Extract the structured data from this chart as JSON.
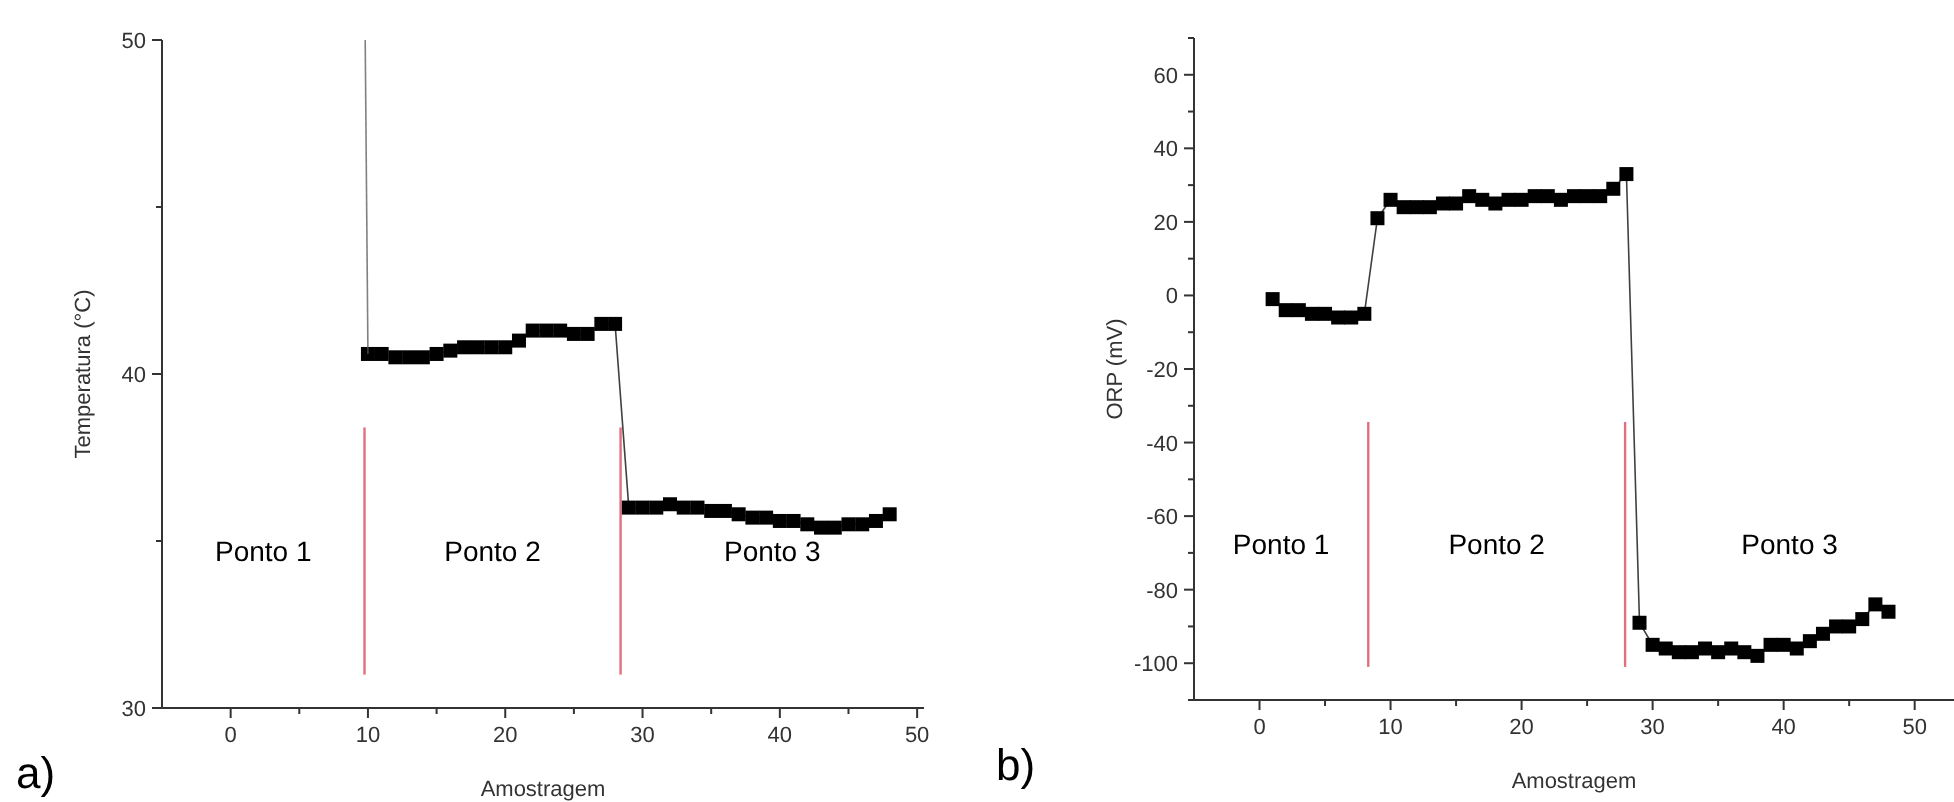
{
  "chart_data": [
    {
      "type": "line",
      "xlabel": "Amostragem",
      "ylabel": "Temperatura (°C)",
      "xlim": [
        -5,
        50.5
      ],
      "ylim": [
        30,
        50
      ],
      "xticks": [
        0,
        {
          "value": 5,
          "label": null
        },
        10,
        {
          "value": 15,
          "label": null
        },
        20,
        {
          "value": 25,
          "label": null
        },
        30,
        {
          "value": 35,
          "label": null
        },
        40,
        {
          "value": 45,
          "label": null
        },
        50
      ],
      "yticks": [
        30,
        {
          "value": 35,
          "label": null
        },
        40,
        {
          "value": 45,
          "label": null
        },
        50
      ],
      "grid": false,
      "marker": "square",
      "line_style": "solid",
      "series": [
        {
          "color": "#000000",
          "x": [
            10,
            11,
            12,
            13,
            14,
            15,
            16,
            17,
            18,
            19,
            20,
            21,
            22,
            23,
            24,
            25,
            26,
            27,
            28,
            29,
            30,
            31,
            32,
            33,
            34,
            35,
            36,
            37,
            38,
            39,
            40,
            41,
            42,
            43,
            44,
            45,
            46,
            47,
            48
          ],
          "values": [
            40.6,
            40.6,
            40.5,
            40.5,
            40.5,
            40.6,
            40.7,
            40.8,
            40.8,
            40.8,
            40.8,
            41.0,
            41.3,
            41.3,
            41.3,
            41.2,
            41.2,
            41.5,
            41.5,
            36.0,
            36.0,
            36.0,
            36.1,
            36.0,
            36.0,
            35.9,
            35.9,
            35.8,
            35.7,
            35.7,
            35.6,
            35.6,
            35.5,
            35.4,
            35.4,
            35.5,
            35.5,
            35.6,
            35.8
          ]
        },
        {
          "color": "#555555",
          "marker": "none",
          "x": [
            9.8,
            10
          ],
          "values": [
            50,
            40.6
          ]
        }
      ],
      "ref_lines": [
        {
          "axis": "x",
          "value": 9.75,
          "color": "#e07080"
        },
        {
          "axis": "x",
          "value": 28.4,
          "color": "#e07080"
        }
      ],
      "annotations": [
        "Ponto 1",
        "Ponto 2",
        "Ponto 3",
        "a)"
      ]
    },
    {
      "type": "line",
      "xlabel": "Amostragem",
      "ylabel": "ORP (mV)",
      "xlim": [
        -5,
        53
      ],
      "ylim": [
        -110,
        70
      ],
      "xticks": [
        0,
        {
          "value": 5,
          "label": null
        },
        10,
        {
          "value": 15,
          "label": null
        },
        20,
        {
          "value": 25,
          "label": null
        },
        30,
        {
          "value": 35,
          "label": null
        },
        40,
        {
          "value": 45,
          "label": null
        },
        50
      ],
      "yticks": [
        {
          "value": -110,
          "label": null
        },
        -100,
        {
          "value": -90,
          "label": null
        },
        -80,
        {
          "value": -70,
          "label": null
        },
        -60,
        {
          "value": -50,
          "label": null
        },
        -40,
        {
          "value": -30,
          "label": null
        },
        -20,
        {
          "value": -10,
          "label": null
        },
        0,
        {
          "value": 10,
          "label": null
        },
        20,
        {
          "value": 30,
          "label": null
        },
        40,
        {
          "value": 50,
          "label": null
        },
        60,
        {
          "value": 70,
          "label": null
        }
      ],
      "grid": false,
      "marker": "square",
      "line_style": "solid",
      "series": [
        {
          "color": "#000000",
          "x": [
            1,
            2,
            3,
            4,
            5,
            6,
            7,
            8,
            9,
            10,
            11,
            12,
            13,
            14,
            15,
            16,
            17,
            18,
            19,
            20,
            21,
            22,
            23,
            24,
            25,
            26,
            27,
            28,
            29,
            30,
            31,
            32,
            33,
            34,
            35,
            36,
            37,
            38,
            39,
            40,
            41,
            42,
            43,
            44,
            45,
            46,
            47,
            48
          ],
          "values": [
            -1,
            -4,
            -4,
            -5,
            -5,
            -6,
            -6,
            -5,
            21,
            26,
            24,
            24,
            24,
            25,
            25,
            27,
            26,
            25,
            26,
            26,
            27,
            27,
            26,
            27,
            27,
            27,
            29,
            33,
            -89,
            -95,
            -96,
            -97,
            -97,
            -96,
            -97,
            -96,
            -97,
            -98,
            -95,
            -95,
            -96,
            -94,
            -92,
            -90,
            -90,
            -88,
            -84,
            -86
          ]
        }
      ],
      "ref_lines": [
        {
          "axis": "x",
          "value": 8.3,
          "color": "#e07080"
        },
        {
          "axis": "x",
          "value": 27.9,
          "color": "#e07080"
        }
      ],
      "annotations": [
        "Ponto 1",
        "Ponto 2",
        "Ponto 3",
        "b)"
      ]
    }
  ]
}
